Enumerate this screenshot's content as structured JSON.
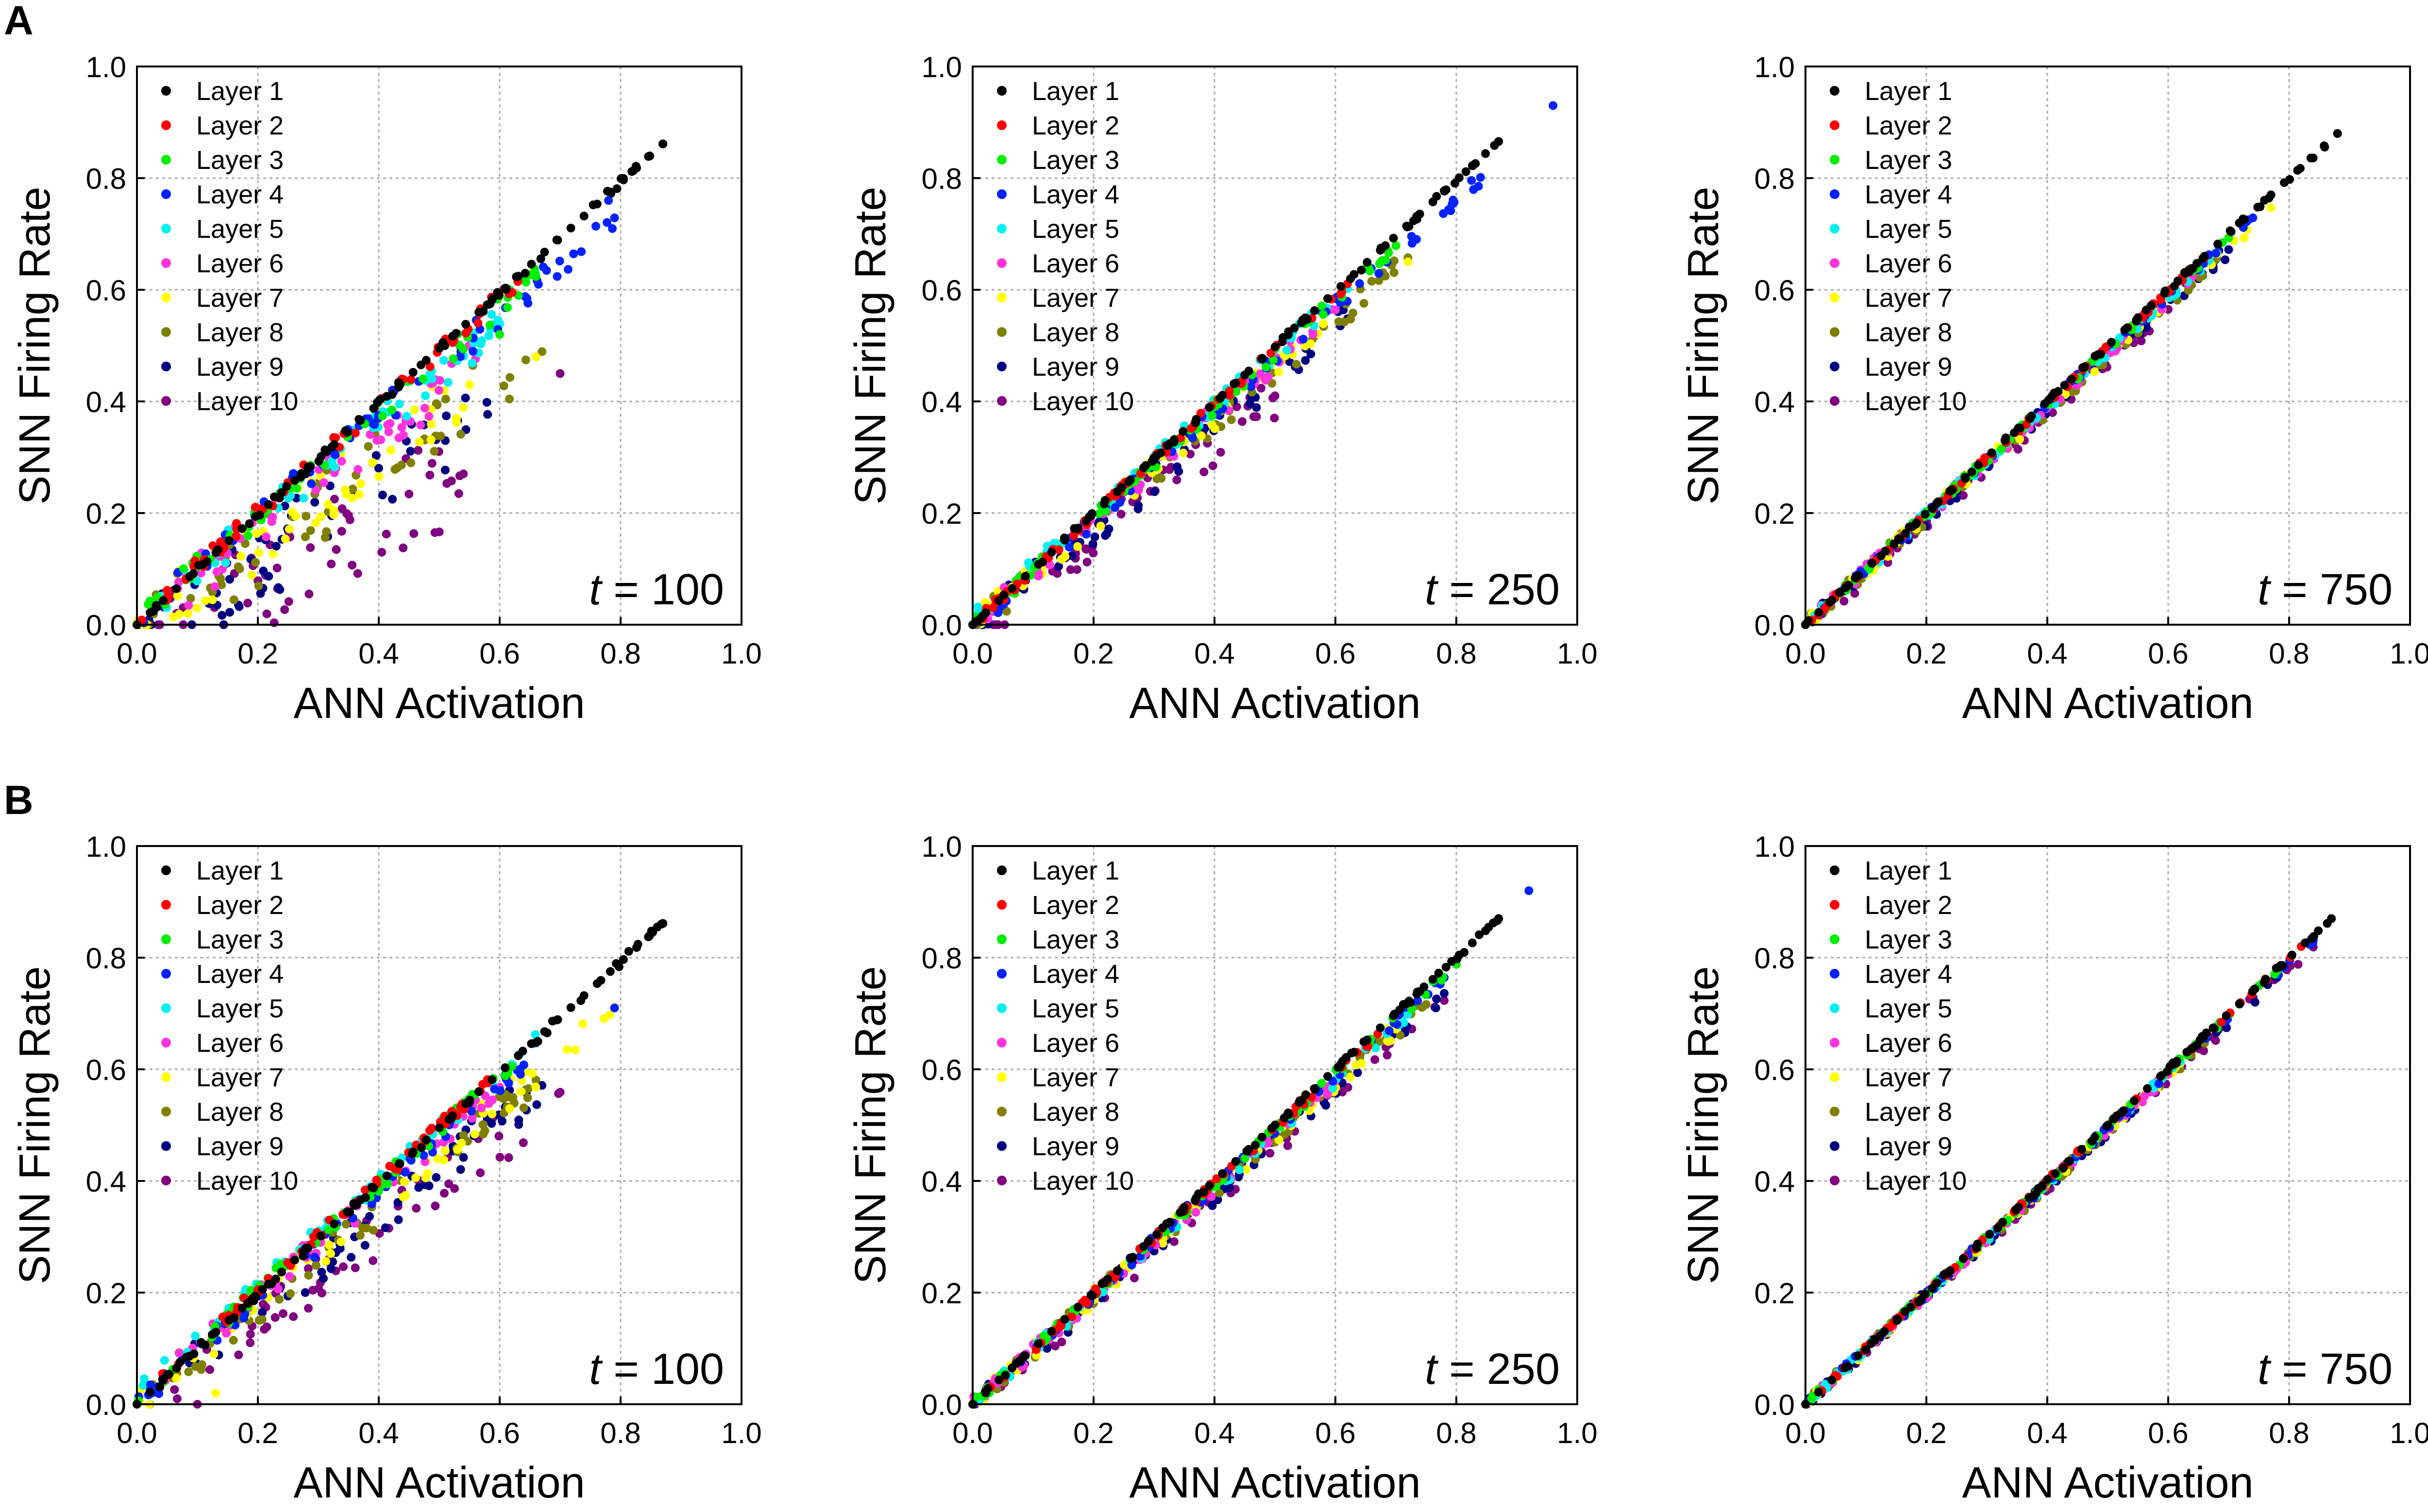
{
  "panel_labels": [
    "A",
    "B"
  ],
  "legend_labels": [
    "Layer 1",
    "Layer 2",
    "Layer 3",
    "Layer 4",
    "Layer 5",
    "Layer 6",
    "Layer 7",
    "Layer 8",
    "Layer 9",
    "Layer 10"
  ],
  "layer_colors": [
    "#000000",
    "#ff0000",
    "#00ee00",
    "#0022ff",
    "#00f0f0",
    "#ff33dd",
    "#ffff00",
    "#808000",
    "#000080",
    "#800080"
  ],
  "chart_data": [
    {
      "id": "A1",
      "row": "A",
      "type": "scatter",
      "title": "",
      "annotation_var": "t",
      "annotation_rest": " = 100",
      "t": 100,
      "xlabel": "ANN Activation",
      "ylabel": "SNN Firing Rate",
      "xlim": [
        0,
        1
      ],
      "ylim": [
        0,
        1
      ],
      "xticks": [
        "0.0",
        "0.2",
        "0.4",
        "0.6",
        "0.8",
        "1.0"
      ],
      "yticks": [
        "0.0",
        "0.2",
        "0.4",
        "0.6",
        "0.8",
        "1.0"
      ],
      "grid": true,
      "legend_position": "top-left",
      "layer_max_x": [
        0.87,
        0.63,
        0.66,
        0.79,
        0.6,
        0.56,
        0.55,
        0.67,
        0.58,
        0.54
      ],
      "layer_slope": [
        0.99,
        0.96,
        0.93,
        0.91,
        0.89,
        0.85,
        0.8,
        0.76,
        0.71,
        0.63
      ],
      "layer_offset": [
        0,
        0.01,
        0.01,
        0.01,
        0.005,
        0,
        -0.01,
        -0.02,
        -0.035,
        -0.07
      ],
      "outliers": [
        [
          0.78,
          0.76
        ],
        [
          0.66,
          0.48
        ],
        [
          0.7,
          0.45
        ],
        [
          0.6,
          0.52
        ]
      ]
    },
    {
      "id": "A2",
      "row": "A",
      "type": "scatter",
      "title": "",
      "annotation_var": "t",
      "annotation_rest": " = 250",
      "t": 250,
      "xlabel": "ANN Activation",
      "ylabel": "SNN Firing Rate",
      "xlim": [
        0,
        1
      ],
      "ylim": [
        0,
        1
      ],
      "xticks": [
        "0.0",
        "0.2",
        "0.4",
        "0.6",
        "0.8",
        "1.0"
      ],
      "yticks": [
        "0.0",
        "0.2",
        "0.4",
        "0.6",
        "0.8",
        "1.0"
      ],
      "grid": true,
      "legend_position": "top-left",
      "layer_max_x": [
        0.87,
        0.62,
        0.7,
        0.84,
        0.62,
        0.6,
        0.58,
        0.72,
        0.62,
        0.5
      ],
      "layer_slope": [
        0.995,
        0.985,
        0.97,
        0.96,
        0.955,
        0.94,
        0.93,
        0.92,
        0.9,
        0.86
      ],
      "layer_offset": [
        0,
        0,
        0,
        -0.005,
        0.01,
        0,
        0,
        -0.005,
        -0.01,
        -0.02
      ],
      "outliers": [
        [
          0.96,
          0.93
        ],
        [
          0.72,
          0.65
        ]
      ]
    },
    {
      "id": "A3",
      "row": "A",
      "type": "scatter",
      "title": "",
      "annotation_var": "t",
      "annotation_rest": " = 750",
      "t": 750,
      "xlabel": "ANN Activation",
      "ylabel": "SNN Firing Rate",
      "xlim": [
        0,
        1
      ],
      "ylim": [
        0,
        1
      ],
      "xticks": [
        "0.0",
        "0.2",
        "0.4",
        "0.6",
        "0.8",
        "1.0"
      ],
      "yticks": [
        "0.0",
        "0.2",
        "0.4",
        "0.6",
        "0.8",
        "1.0"
      ],
      "grid": true,
      "legend_position": "top-left",
      "layer_max_x": [
        0.88,
        0.66,
        0.7,
        0.74,
        0.68,
        0.64,
        0.77,
        0.68,
        0.7,
        0.6
      ],
      "layer_slope": [
        1.0,
        0.995,
        0.99,
        0.985,
        0.98,
        0.975,
        0.97,
        0.965,
        0.96,
        0.95
      ],
      "layer_offset": [
        0,
        0,
        0,
        0,
        0,
        0,
        0,
        0,
        0,
        -0.005
      ],
      "outliers": []
    },
    {
      "id": "B1",
      "row": "B",
      "type": "scatter",
      "title": "",
      "annotation_var": "t",
      "annotation_rest": " = 100",
      "t": 100,
      "xlabel": "ANN Activation",
      "ylabel": "SNN Firing Rate",
      "xlim": [
        0,
        1
      ],
      "ylim": [
        0,
        1
      ],
      "xticks": [
        "0.0",
        "0.2",
        "0.4",
        "0.6",
        "0.8",
        "1.0"
      ],
      "yticks": [
        "0.0",
        "0.2",
        "0.4",
        "0.6",
        "0.8",
        "1.0"
      ],
      "grid": true,
      "legend_position": "top-left",
      "layer_max_x": [
        0.87,
        0.58,
        0.62,
        0.64,
        0.66,
        0.6,
        0.79,
        0.66,
        0.67,
        0.7
      ],
      "layer_slope": [
        0.99,
        0.975,
        0.96,
        0.95,
        0.95,
        0.93,
        0.9,
        0.88,
        0.86,
        0.82
      ],
      "layer_offset": [
        0,
        0.01,
        0.01,
        0.0,
        0.02,
        0.01,
        0.0,
        0.0,
        -0.005,
        -0.015
      ],
      "outliers": [
        [
          0.79,
          0.71
        ],
        [
          0.13,
          0.02
        ],
        [
          0.1,
          0.0
        ]
      ]
    },
    {
      "id": "B2",
      "row": "B",
      "type": "scatter",
      "title": "",
      "annotation_var": "t",
      "annotation_rest": " = 250",
      "t": 250,
      "xlabel": "ANN Activation",
      "ylabel": "SNN Firing Rate",
      "xlim": [
        0,
        1
      ],
      "ylim": [
        0,
        1
      ],
      "xticks": [
        "0.0",
        "0.2",
        "0.4",
        "0.6",
        "0.8",
        "1.0"
      ],
      "yticks": [
        "0.0",
        "0.2",
        "0.4",
        "0.6",
        "0.8",
        "1.0"
      ],
      "grid": true,
      "legend_position": "top-left",
      "layer_max_x": [
        0.87,
        0.67,
        0.8,
        0.78,
        0.72,
        0.6,
        0.7,
        0.75,
        0.78,
        0.78
      ],
      "layer_slope": [
        1.0,
        0.99,
        0.985,
        0.98,
        0.97,
        0.965,
        0.96,
        0.955,
        0.95,
        0.94
      ],
      "layer_offset": [
        0,
        0,
        0,
        0,
        0,
        0,
        0,
        0,
        -0.005,
        -0.01
      ],
      "outliers": [
        [
          0.92,
          0.92
        ]
      ]
    },
    {
      "id": "B3",
      "row": "B",
      "type": "scatter",
      "title": "",
      "annotation_var": "t",
      "annotation_rest": " = 750",
      "t": 750,
      "xlabel": "ANN Activation",
      "ylabel": "SNN Firing Rate",
      "xlim": [
        0,
        1
      ],
      "ylim": [
        0,
        1
      ],
      "xticks": [
        "0.0",
        "0.2",
        "0.4",
        "0.6",
        "0.8",
        "1.0"
      ],
      "yticks": [
        "0.0",
        "0.2",
        "0.4",
        "0.6",
        "0.8",
        "1.0"
      ],
      "grid": true,
      "legend_position": "top-left",
      "layer_max_x": [
        0.87,
        0.82,
        0.78,
        0.84,
        0.62,
        0.6,
        0.62,
        0.66,
        0.78,
        0.84
      ],
      "layer_slope": [
        1.0,
        1.0,
        0.995,
        0.99,
        0.99,
        0.985,
        0.985,
        0.98,
        0.98,
        0.975
      ],
      "layer_offset": [
        0,
        0,
        0,
        0,
        0,
        0,
        0,
        0,
        0,
        0
      ],
      "outliers": []
    }
  ]
}
